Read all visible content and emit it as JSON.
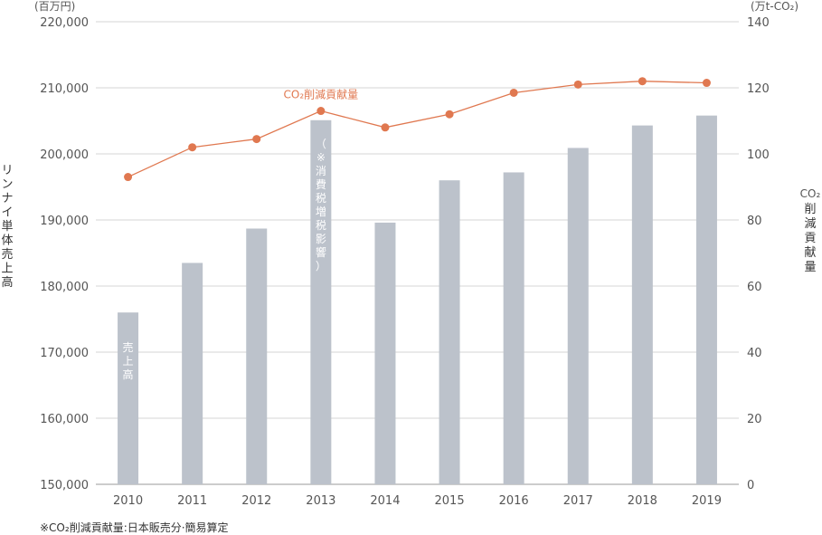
{
  "chart_data": {
    "type": "bar",
    "categories": [
      "2010",
      "2011",
      "2012",
      "2013",
      "2014",
      "2015",
      "2016",
      "2017",
      "2018",
      "2019"
    ],
    "series": [
      {
        "name": "売上高",
        "type": "bar",
        "axis": "left",
        "values": [
          176000,
          183500,
          188700,
          205100,
          189600,
          196000,
          197200,
          200900,
          204300,
          205800
        ]
      },
      {
        "name": "CO₂削減貢献量",
        "type": "line",
        "axis": "right",
        "values": [
          93,
          102,
          104.5,
          113,
          108,
          112,
          118.5,
          121,
          122,
          121.5
        ]
      }
    ],
    "left_axis": {
      "label": "リンナイ単体売上高",
      "unit": "(百万円)",
      "ylim": [
        150000,
        220000
      ],
      "ticks": [
        "150,000",
        "160,000",
        "170,000",
        "180,000",
        "190,000",
        "200,000",
        "210,000",
        "220,000"
      ]
    },
    "right_axis": {
      "label": "CO₂削減貢献量",
      "unit": "(万t-CO₂)",
      "ylim": [
        0,
        140
      ],
      "ticks": [
        "0",
        "20",
        "40",
        "60",
        "80",
        "100",
        "120",
        "140"
      ]
    },
    "bar_annotations": [
      {
        "category": "2010",
        "text": "売上高"
      },
      {
        "category": "2013",
        "text": "（※消費税増税影響）"
      }
    ],
    "grid": true,
    "colors": {
      "bar": "#bcc2cb",
      "line": "#e07850",
      "grid": "#d4d4d4"
    }
  },
  "footnote": "※CO₂削減貢献量:日本販売分·簡易算定"
}
